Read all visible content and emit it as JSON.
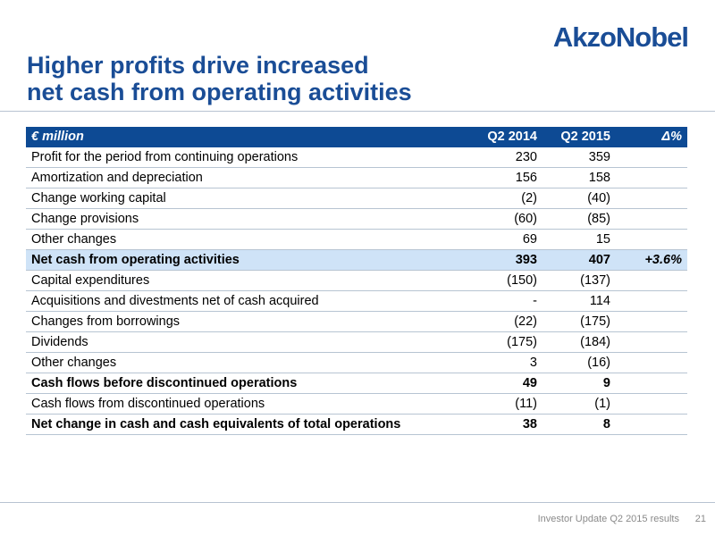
{
  "logo": "AkzoNobel",
  "title": {
    "line1": "Higher profits drive increased",
    "line2": "net cash from operating activities"
  },
  "table": {
    "headers": [
      "€ million",
      "Q2 2014",
      "Q2 2015",
      "Δ%"
    ],
    "rows": [
      {
        "label": "Profit for the period from continuing operations",
        "q2_2014": "230",
        "q2_2015": "359",
        "delta": ""
      },
      {
        "label": "Amortization and depreciation",
        "q2_2014": "156",
        "q2_2015": "158",
        "delta": ""
      },
      {
        "label": "Change working capital",
        "q2_2014": "(2)",
        "q2_2015": "(40)",
        "delta": ""
      },
      {
        "label": "Change provisions",
        "q2_2014": "(60)",
        "q2_2015": "(85)",
        "delta": ""
      },
      {
        "label": "Other changes",
        "q2_2014": "69",
        "q2_2015": "15",
        "delta": ""
      },
      {
        "label": "Net cash from operating activities",
        "q2_2014": "393",
        "q2_2015": "407",
        "delta": "+3.6%"
      },
      {
        "label": "Capital expenditures",
        "q2_2014": "(150)",
        "q2_2015": "(137)",
        "delta": ""
      },
      {
        "label": "Acquisitions and divestments net of cash acquired",
        "q2_2014": "-",
        "q2_2015": "114",
        "delta": ""
      },
      {
        "label": "Changes from borrowings",
        "q2_2014": "(22)",
        "q2_2015": "(175)",
        "delta": ""
      },
      {
        "label": "Dividends",
        "q2_2014": "(175)",
        "q2_2015": "(184)",
        "delta": ""
      },
      {
        "label": "Other changes",
        "q2_2014": "3",
        "q2_2015": "(16)",
        "delta": ""
      },
      {
        "label": "Cash flows before discontinued operations",
        "q2_2014": "49",
        "q2_2015": "9",
        "delta": ""
      },
      {
        "label": "Cash flows from discontinued operations",
        "q2_2014": "(11)",
        "q2_2015": "(1)",
        "delta": ""
      },
      {
        "label": "Net change in cash and cash equivalents of total operations",
        "q2_2014": "38",
        "q2_2015": "8",
        "delta": ""
      }
    ]
  },
  "footer": {
    "text": "Investor Update Q2 2015 results",
    "page": "21"
  },
  "colors": {
    "brand_blue": "#1a4d96",
    "header_bg": "#0d4a94",
    "highlight_bg": "#cfe3f7"
  }
}
